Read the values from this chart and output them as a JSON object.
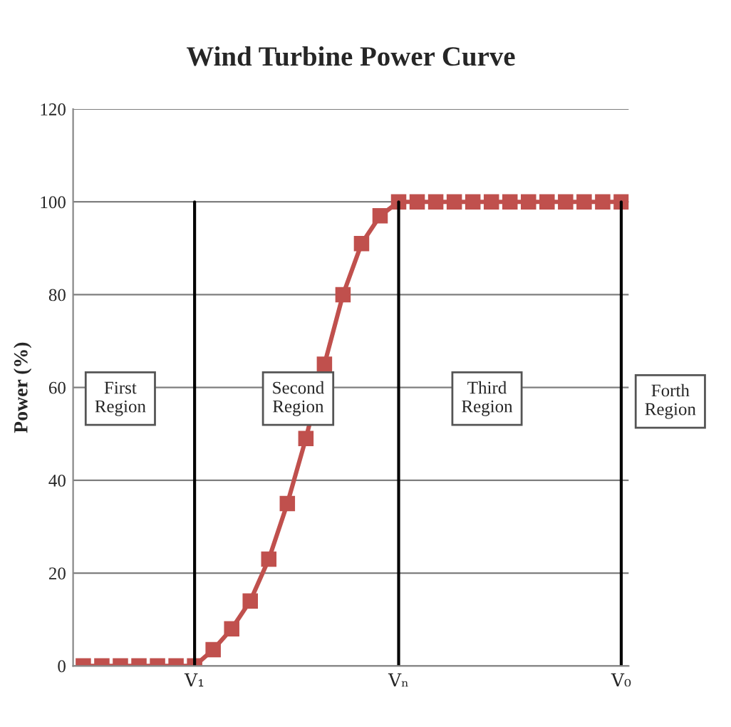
{
  "chart_data": {
    "type": "line",
    "title": "Wind Turbine Power Curve",
    "ylabel": "Power (%)",
    "categories": [
      null,
      null,
      null,
      null,
      null,
      null,
      "V₁",
      null,
      null,
      null,
      null,
      null,
      null,
      null,
      null,
      null,
      null,
      "Vₙ",
      null,
      null,
      null,
      null,
      null,
      null,
      null,
      null,
      null,
      null,
      null,
      "V₀"
    ],
    "series": [
      {
        "color": "#c0504d",
        "values": [
          0,
          0,
          0,
          0,
          0,
          0,
          0,
          3.5,
          8,
          14,
          23,
          35,
          49,
          65,
          80,
          91,
          97,
          100,
          100,
          100,
          100,
          100,
          100,
          100,
          100,
          100,
          100,
          100,
          100,
          100
        ]
      }
    ],
    "ylim": [
      0,
      120
    ],
    "yticks": [
      0,
      20,
      40,
      60,
      80,
      100,
      120
    ],
    "grid": "y",
    "marker": "square",
    "line_style": "solid",
    "legend": false,
    "ref_lines": [
      {
        "axis": "x",
        "value": "V₁",
        "color": "#000000"
      },
      {
        "axis": "x",
        "value": "Vₙ",
        "color": "#000000"
      },
      {
        "axis": "x",
        "value": "V₀",
        "color": "#000000"
      }
    ],
    "annotations": [
      "First\nRegion",
      "Second\nRegion",
      "Third\nRegion",
      "Forth\nRegion"
    ]
  }
}
